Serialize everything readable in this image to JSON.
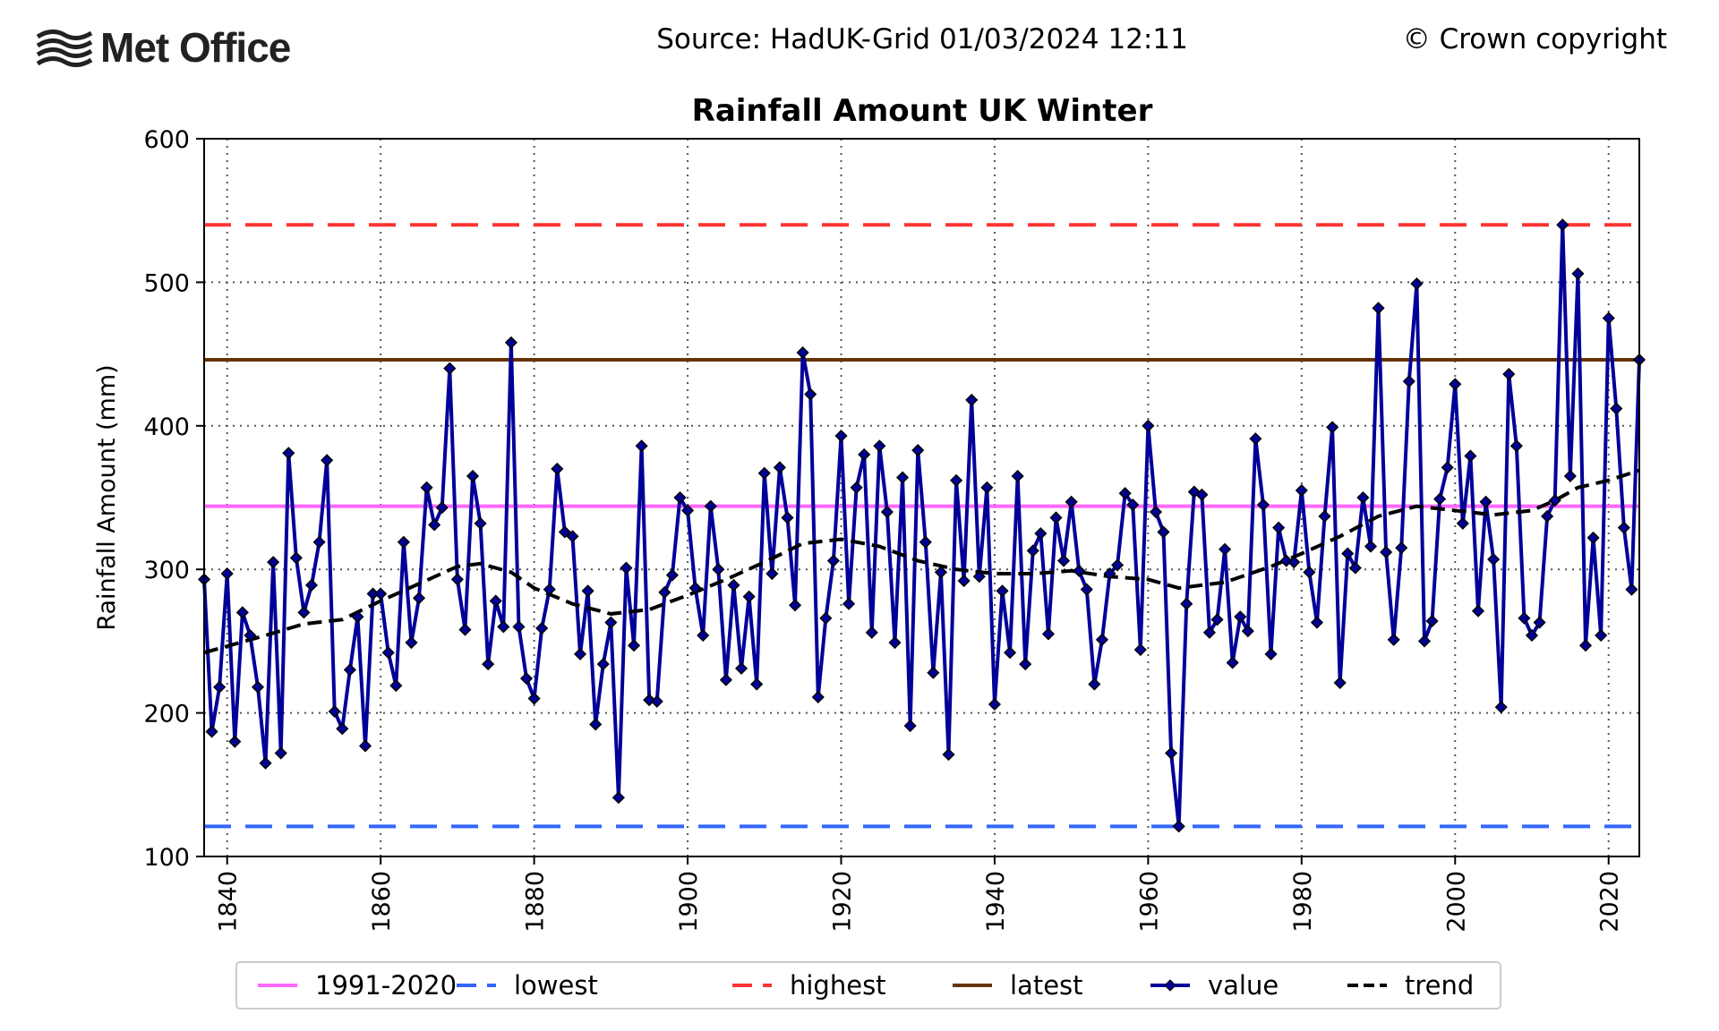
{
  "header": {
    "logo_text": "Met Office",
    "source": "Source: HadUK-Grid 01/03/2024 12:11",
    "copyright": "© Crown copyright"
  },
  "chart_data": {
    "type": "line",
    "title": "Rainfall Amount UK Winter",
    "xlabel": "",
    "ylabel": "Rainfall Amount (mm)",
    "xlim": [
      1837,
      2024
    ],
    "ylim": [
      100,
      600
    ],
    "xticks": [
      1840,
      1860,
      1880,
      1900,
      1920,
      1940,
      1960,
      1980,
      2000,
      2020
    ],
    "yticks": [
      100,
      200,
      300,
      400,
      500,
      600
    ],
    "grid": true,
    "legend_position": "bottom",
    "reference_lines": [
      {
        "name": "1991-2020",
        "value": 344,
        "color": "#ff66ff",
        "style": "solid"
      },
      {
        "name": "lowest",
        "value": 121,
        "color": "#3366ff",
        "style": "dashed"
      },
      {
        "name": "highest",
        "value": 540,
        "color": "#ff3333",
        "style": "dashed"
      },
      {
        "name": "latest",
        "value": 446,
        "color": "#663300",
        "style": "solid"
      }
    ],
    "series": [
      {
        "name": "value",
        "color": "#000099",
        "marker": "diamond",
        "x": [
          1837,
          1838,
          1839,
          1840,
          1841,
          1842,
          1843,
          1844,
          1845,
          1846,
          1847,
          1848,
          1849,
          1850,
          1851,
          1852,
          1853,
          1854,
          1855,
          1856,
          1857,
          1858,
          1859,
          1860,
          1861,
          1862,
          1863,
          1864,
          1865,
          1866,
          1867,
          1868,
          1869,
          1870,
          1871,
          1872,
          1873,
          1874,
          1875,
          1876,
          1877,
          1878,
          1879,
          1880,
          1881,
          1882,
          1883,
          1884,
          1885,
          1886,
          1887,
          1888,
          1889,
          1890,
          1891,
          1892,
          1893,
          1894,
          1895,
          1896,
          1897,
          1898,
          1899,
          1900,
          1901,
          1902,
          1903,
          1904,
          1905,
          1906,
          1907,
          1908,
          1909,
          1910,
          1911,
          1912,
          1913,
          1914,
          1915,
          1916,
          1917,
          1918,
          1919,
          1920,
          1921,
          1922,
          1923,
          1924,
          1925,
          1926,
          1927,
          1928,
          1929,
          1930,
          1931,
          1932,
          1933,
          1934,
          1935,
          1936,
          1937,
          1938,
          1939,
          1940,
          1941,
          1942,
          1943,
          1944,
          1945,
          1946,
          1947,
          1948,
          1949,
          1950,
          1951,
          1952,
          1953,
          1954,
          1955,
          1956,
          1957,
          1958,
          1959,
          1960,
          1961,
          1962,
          1963,
          1964,
          1965,
          1966,
          1967,
          1968,
          1969,
          1970,
          1971,
          1972,
          1973,
          1974,
          1975,
          1976,
          1977,
          1978,
          1979,
          1980,
          1981,
          1982,
          1983,
          1984,
          1985,
          1986,
          1987,
          1988,
          1989,
          1990,
          1991,
          1992,
          1993,
          1994,
          1995,
          1996,
          1997,
          1998,
          1999,
          2000,
          2001,
          2002,
          2003,
          2004,
          2005,
          2006,
          2007,
          2008,
          2009,
          2010,
          2011,
          2012,
          2013,
          2014,
          2015,
          2016,
          2017,
          2018,
          2019,
          2020,
          2021,
          2022,
          2023,
          2024
        ],
        "values": [
          293,
          187,
          218,
          297,
          180,
          270,
          254,
          218,
          165,
          305,
          172,
          381,
          308,
          270,
          289,
          319,
          376,
          201,
          189,
          230,
          267,
          177,
          283,
          283,
          242,
          219,
          319,
          249,
          280,
          357,
          331,
          343,
          440,
          293,
          258,
          365,
          332,
          234,
          278,
          260,
          458,
          260,
          224,
          210,
          259,
          286,
          370,
          326,
          323,
          241,
          285,
          192,
          234,
          263,
          141,
          301,
          247,
          386,
          209,
          208,
          284,
          296,
          350,
          341,
          287,
          254,
          344,
          300,
          223,
          289,
          231,
          281,
          220,
          367,
          297,
          371,
          336,
          275,
          451,
          422,
          211,
          266,
          306,
          393,
          276,
          357,
          380,
          256,
          386,
          340,
          249,
          364,
          191,
          383,
          319,
          228,
          298,
          171,
          362,
          292,
          418,
          295,
          357,
          206,
          285,
          242,
          365,
          234,
          313,
          325,
          255,
          336,
          306,
          347,
          299,
          286,
          220,
          251,
          297,
          303,
          353,
          345,
          244,
          400,
          340,
          326,
          172,
          121,
          276,
          354,
          352,
          256,
          265,
          314,
          235,
          267,
          257,
          391,
          345,
          241,
          329,
          306,
          305,
          355,
          298,
          263,
          337,
          399,
          221,
          311,
          301,
          350,
          316,
          482,
          312,
          251,
          315,
          431,
          499,
          250,
          264,
          349,
          371,
          429,
          332,
          379,
          271,
          347,
          307,
          204,
          436,
          386,
          266,
          254,
          263,
          337,
          348,
          540,
          365,
          506,
          247,
          322,
          254,
          475,
          412,
          329,
          286,
          446
        ]
      },
      {
        "name": "trend",
        "color": "#000000",
        "style": "dashed",
        "x": [
          1837,
          1845,
          1850,
          1855,
          1860,
          1865,
          1870,
          1873,
          1877,
          1880,
          1885,
          1890,
          1895,
          1900,
          1905,
          1910,
          1915,
          1920,
          1925,
          1930,
          1935,
          1940,
          1945,
          1950,
          1955,
          1960,
          1964,
          1970,
          1976,
          1980,
          1985,
          1990,
          1995,
          2000,
          2005,
          2010,
          2013,
          2016,
          2020,
          2024
        ],
        "values": [
          242,
          254,
          262,
          265,
          278,
          290,
          302,
          304,
          298,
          287,
          276,
          269,
          272,
          282,
          293,
          305,
          318,
          321,
          316,
          306,
          300,
          297,
          297,
          299,
          295,
          293,
          287,
          291,
          302,
          311,
          323,
          337,
          344,
          341,
          338,
          341,
          348,
          357,
          362,
          369
        ]
      }
    ],
    "legend": [
      "1991-2020",
      "lowest",
      "highest",
      "latest",
      "value",
      "trend"
    ]
  }
}
